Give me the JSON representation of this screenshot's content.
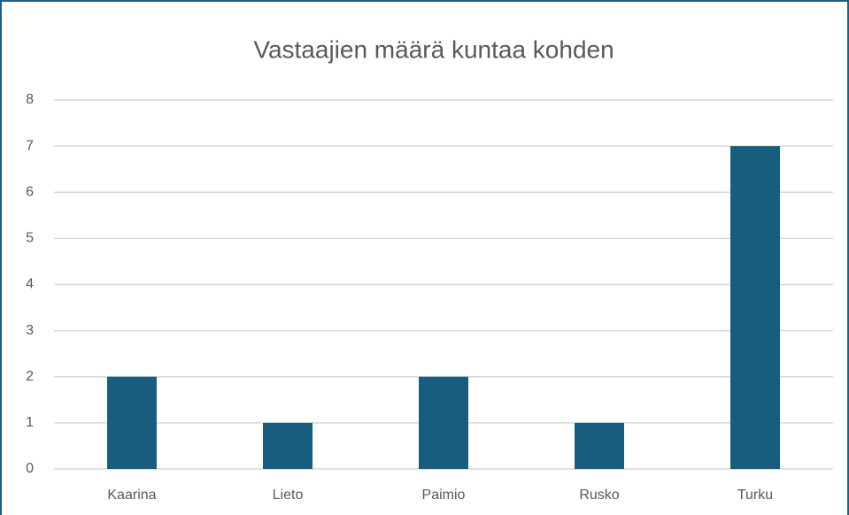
{
  "chart_data": {
    "type": "bar",
    "title": "Vastaajien määrä kuntaa kohden",
    "categories": [
      "Kaarina",
      "Lieto",
      "Paimio",
      "Rusko",
      "Turku"
    ],
    "values": [
      2,
      1,
      2,
      1,
      7
    ],
    "color": "#175e7e",
    "ylim": [
      0,
      8
    ],
    "yticks": [
      0,
      1,
      2,
      3,
      4,
      5,
      6,
      7,
      8
    ],
    "grid": true
  }
}
